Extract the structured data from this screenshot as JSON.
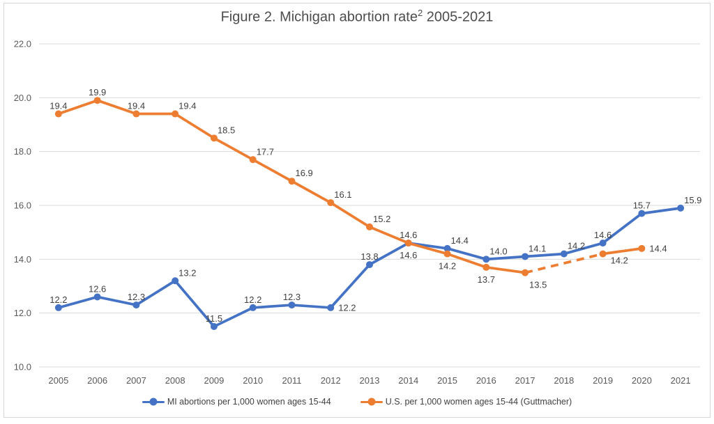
{
  "title": {
    "prefix": "Figure 2. Michigan abortion rate",
    "superscript": "2",
    "suffix": " 2005-2021"
  },
  "chart_data": {
    "type": "line",
    "title": "Figure 2. Michigan abortion rate(2) 2005-2021",
    "categories": [
      "2005",
      "2006",
      "2007",
      "2008",
      "2009",
      "2010",
      "2011",
      "2012",
      "2013",
      "2014",
      "2015",
      "2016",
      "2017",
      "2018",
      "2019",
      "2020",
      "2021"
    ],
    "series": [
      {
        "name": "MI abortions per 1,000 women ages 15-44",
        "color": "#4472C4",
        "values": [
          12.2,
          12.6,
          12.3,
          13.2,
          11.5,
          12.2,
          12.3,
          12.2,
          13.8,
          14.6,
          14.4,
          14.0,
          14.1,
          14.2,
          14.6,
          15.7,
          15.9
        ],
        "label_side": [
          "above",
          "above",
          "above",
          "above-right",
          "above",
          "above",
          "above",
          "right",
          "above",
          "below",
          "above-right",
          "above-right",
          "above-right",
          "above-right",
          "above",
          "above",
          "above-right"
        ],
        "segments": [
          {
            "from": 0,
            "to": 16,
            "style": "solid"
          }
        ]
      },
      {
        "name": "U.S. per 1,000 women ages 15-44 (Guttmacher)",
        "color": "#ED7D31",
        "values": [
          19.4,
          19.9,
          19.4,
          19.4,
          18.5,
          17.7,
          16.9,
          16.1,
          15.2,
          14.6,
          14.2,
          13.7,
          13.5,
          null,
          14.2,
          14.4,
          null
        ],
        "label_side": [
          "above",
          "above",
          "above",
          "above-right",
          "above-right",
          "above-right",
          "above-right",
          "above-right",
          "above-right",
          "above",
          "below",
          "below",
          "below-right",
          "above",
          "right-low",
          "right",
          "above"
        ],
        "segments": [
          {
            "from": 0,
            "to": 12,
            "style": "solid"
          },
          {
            "from": 12,
            "to": 14,
            "style": "dashed"
          },
          {
            "from": 14,
            "to": 15,
            "style": "solid"
          }
        ]
      }
    ],
    "ylim": [
      10,
      22
    ],
    "ytick_step": 2,
    "ytick_labels": [
      "10.0",
      "12.0",
      "14.0",
      "16.0",
      "18.0",
      "20.0",
      "22.0"
    ],
    "grid": true,
    "legend_position": "bottom",
    "xlabel": "",
    "ylabel": ""
  },
  "legend": {
    "items": [
      {
        "label": "MI abortions per 1,000 women ages 15-44",
        "color": "#4472C4"
      },
      {
        "label": "U.S. per 1,000 women ages 15-44 (Guttmacher)",
        "color": "#ED7D31"
      }
    ]
  },
  "colors": {
    "mi_blue": "#4472C4",
    "us_orange": "#ED7D31",
    "gridline": "#D9D9D9",
    "axis_text": "#595959",
    "data_label": "#404040",
    "border": "#D6D6D6"
  }
}
